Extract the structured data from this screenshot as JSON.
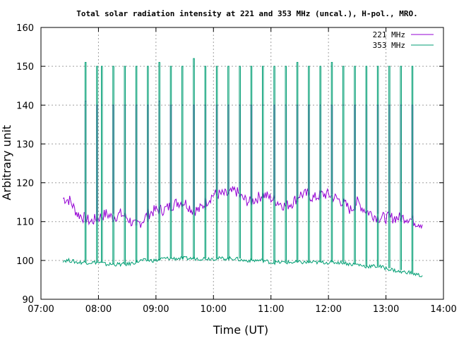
{
  "chart_data": {
    "type": "line",
    "title": "Total solar radiation intensity at 221 and 353 MHz (uncal.), H-pol., MRO.",
    "xlabel": "Time (UT)",
    "ylabel": "Arbitrary unit",
    "xlim": [
      "07:00",
      "14:00"
    ],
    "ylim": [
      90,
      160
    ],
    "x_ticks": [
      "07:00",
      "08:00",
      "09:00",
      "10:00",
      "11:00",
      "12:00",
      "13:00",
      "14:00"
    ],
    "y_ticks": [
      90,
      100,
      110,
      120,
      130,
      140,
      150,
      160
    ],
    "grid": true,
    "legend_position": "top-right",
    "colors": {
      "221 MHz": "#9400d3",
      "353 MHz": "#009e73"
    },
    "series": [
      {
        "name": "221 MHz",
        "x": [
          "07:23",
          "07:30",
          "07:38",
          "07:45",
          "07:52",
          "08:00",
          "08:08",
          "08:15",
          "08:23",
          "08:30",
          "08:38",
          "08:45",
          "08:52",
          "09:00",
          "09:08",
          "09:15",
          "09:23",
          "09:30",
          "09:38",
          "09:45",
          "09:52",
          "10:00",
          "10:08",
          "10:15",
          "10:23",
          "10:30",
          "10:38",
          "10:45",
          "10:52",
          "11:00",
          "11:08",
          "11:15",
          "11:23",
          "11:30",
          "11:38",
          "11:45",
          "11:52",
          "12:00",
          "12:08",
          "12:15",
          "12:23",
          "12:30",
          "12:38",
          "12:45",
          "12:52",
          "13:00",
          "13:08",
          "13:15",
          "13:23",
          "13:30",
          "13:38"
        ],
        "values": [
          116,
          115.5,
          112,
          111,
          110,
          111,
          112,
          111,
          112,
          111,
          109,
          110,
          112,
          113,
          113,
          114,
          115,
          115,
          113,
          113,
          115,
          117,
          117,
          117,
          118,
          116,
          115,
          116,
          117,
          116,
          115,
          114,
          115,
          117,
          117,
          116,
          117,
          117,
          116,
          115,
          113,
          115,
          113,
          112,
          111,
          111,
          111,
          111,
          111,
          110,
          109.5
        ],
        "spikes": [
          {
            "x": "07:46",
            "peak": 141
          },
          {
            "x": "07:58",
            "peak": 140
          },
          {
            "x": "08:03",
            "peak": 140
          },
          {
            "x": "08:15",
            "peak": 140
          },
          {
            "x": "08:27",
            "peak": 140
          },
          {
            "x": "08:39",
            "peak": 140
          },
          {
            "x": "08:51",
            "peak": 140
          },
          {
            "x": "09:03",
            "peak": 141
          },
          {
            "x": "09:15",
            "peak": 140
          },
          {
            "x": "09:27",
            "peak": 140
          },
          {
            "x": "09:39",
            "peak": 140
          },
          {
            "x": "09:51",
            "peak": 140
          },
          {
            "x": "10:03",
            "peak": 140
          },
          {
            "x": "10:15",
            "peak": 140
          },
          {
            "x": "10:27",
            "peak": 140
          },
          {
            "x": "10:39",
            "peak": 140
          },
          {
            "x": "10:51",
            "peak": 140
          },
          {
            "x": "11:03",
            "peak": 140
          },
          {
            "x": "11:15",
            "peak": 140
          },
          {
            "x": "11:27",
            "peak": 140
          },
          {
            "x": "11:39",
            "peak": 140
          },
          {
            "x": "11:51",
            "peak": 140
          },
          {
            "x": "12:03",
            "peak": 140
          },
          {
            "x": "12:15",
            "peak": 140
          },
          {
            "x": "12:27",
            "peak": 140
          },
          {
            "x": "12:39",
            "peak": 140
          },
          {
            "x": "12:51",
            "peak": 140
          },
          {
            "x": "13:03",
            "peak": 140
          },
          {
            "x": "13:15",
            "peak": 140
          },
          {
            "x": "13:27",
            "peak": 140
          }
        ]
      },
      {
        "name": "353 MHz",
        "x": [
          "07:23",
          "07:30",
          "07:38",
          "07:45",
          "07:52",
          "08:00",
          "08:08",
          "08:15",
          "08:23",
          "08:30",
          "08:38",
          "08:45",
          "08:52",
          "09:00",
          "09:08",
          "09:15",
          "09:23",
          "09:30",
          "09:38",
          "09:45",
          "09:52",
          "10:00",
          "10:08",
          "10:15",
          "10:23",
          "10:30",
          "10:38",
          "10:45",
          "10:52",
          "11:00",
          "11:08",
          "11:15",
          "11:23",
          "11:30",
          "11:38",
          "11:45",
          "11:52",
          "12:00",
          "12:08",
          "12:15",
          "12:23",
          "12:30",
          "12:38",
          "12:45",
          "12:52",
          "13:00",
          "13:08",
          "13:15",
          "13:23",
          "13:30",
          "13:38"
        ],
        "values": [
          100,
          100,
          99.5,
          99.5,
          99.5,
          99.5,
          99,
          99,
          99,
          99,
          99.5,
          100,
          100,
          100,
          100.5,
          100.5,
          100.5,
          100.5,
          100.5,
          100.5,
          100.5,
          100.5,
          100.5,
          100.5,
          100.5,
          100,
          100,
          100,
          100,
          99.5,
          99.5,
          99.5,
          99.5,
          99.5,
          99.5,
          99.5,
          99.5,
          99.5,
          99.5,
          99.5,
          99,
          99,
          98.5,
          98.5,
          98.5,
          98,
          97.5,
          97,
          97,
          96.5,
          96
        ],
        "spikes": [
          {
            "x": "07:46",
            "peak": 151
          },
          {
            "x": "07:58",
            "peak": 150
          },
          {
            "x": "08:03",
            "peak": 150
          },
          {
            "x": "08:15",
            "peak": 150
          },
          {
            "x": "08:27",
            "peak": 150
          },
          {
            "x": "08:39",
            "peak": 150
          },
          {
            "x": "08:51",
            "peak": 150
          },
          {
            "x": "09:03",
            "peak": 151
          },
          {
            "x": "09:15",
            "peak": 150
          },
          {
            "x": "09:27",
            "peak": 150
          },
          {
            "x": "09:39",
            "peak": 152
          },
          {
            "x": "09:51",
            "peak": 150
          },
          {
            "x": "10:03",
            "peak": 150
          },
          {
            "x": "10:15",
            "peak": 150
          },
          {
            "x": "10:27",
            "peak": 150
          },
          {
            "x": "10:39",
            "peak": 150
          },
          {
            "x": "10:51",
            "peak": 150
          },
          {
            "x": "11:03",
            "peak": 150
          },
          {
            "x": "11:15",
            "peak": 150
          },
          {
            "x": "11:27",
            "peak": 151
          },
          {
            "x": "11:39",
            "peak": 150
          },
          {
            "x": "11:51",
            "peak": 150
          },
          {
            "x": "12:03",
            "peak": 151
          },
          {
            "x": "12:15",
            "peak": 150
          },
          {
            "x": "12:27",
            "peak": 150
          },
          {
            "x": "12:39",
            "peak": 150
          },
          {
            "x": "12:51",
            "peak": 150
          },
          {
            "x": "13:03",
            "peak": 150
          },
          {
            "x": "13:15",
            "peak": 150
          },
          {
            "x": "13:27",
            "peak": 150
          }
        ]
      }
    ]
  }
}
